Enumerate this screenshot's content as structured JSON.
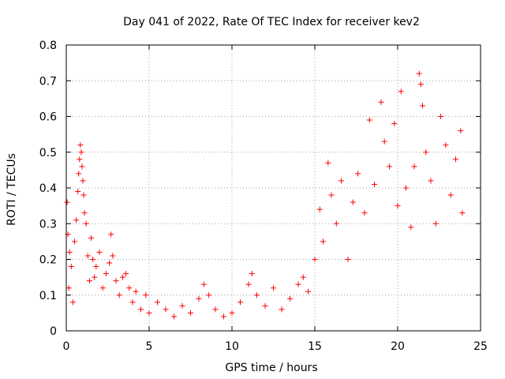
{
  "chart_data": {
    "type": "scatter",
    "title": "Day 041 of 2022, Rate Of TEC Index for receiver kev2",
    "xlabel": "GPS time / hours",
    "ylabel": "ROTI / TECUs",
    "xlim": [
      0,
      25
    ],
    "ylim": [
      0,
      0.8
    ],
    "xticks": [
      0,
      5,
      10,
      15,
      20,
      25
    ],
    "yticks": [
      0,
      0.1,
      0.2,
      0.3,
      0.4,
      0.5,
      0.6,
      0.7,
      0.8
    ],
    "xtick_labels": [
      "0",
      "5",
      "10",
      "15",
      "20",
      "25"
    ],
    "ytick_labels": [
      "0",
      "0.1",
      "0.2",
      "0.3",
      "0.4",
      "0.5",
      "0.6",
      "0.7",
      "0.8"
    ],
    "grid": true,
    "marker": "+",
    "marker_color": "#ff0000",
    "series": [
      {
        "name": "ROTI kev2",
        "points": [
          [
            0.05,
            0.36
          ],
          [
            0.1,
            0.27
          ],
          [
            0.15,
            0.12
          ],
          [
            0.2,
            0.22
          ],
          [
            0.3,
            0.18
          ],
          [
            0.4,
            0.08
          ],
          [
            0.5,
            0.25
          ],
          [
            0.6,
            0.31
          ],
          [
            0.7,
            0.39
          ],
          [
            0.75,
            0.44
          ],
          [
            0.8,
            0.48
          ],
          [
            0.85,
            0.52
          ],
          [
            0.9,
            0.5
          ],
          [
            0.95,
            0.46
          ],
          [
            1.0,
            0.42
          ],
          [
            1.05,
            0.38
          ],
          [
            1.1,
            0.33
          ],
          [
            1.2,
            0.3
          ],
          [
            1.3,
            0.21
          ],
          [
            1.4,
            0.14
          ],
          [
            1.5,
            0.26
          ],
          [
            1.6,
            0.2
          ],
          [
            1.7,
            0.15
          ],
          [
            1.8,
            0.18
          ],
          [
            2.0,
            0.22
          ],
          [
            2.2,
            0.12
          ],
          [
            2.4,
            0.16
          ],
          [
            2.6,
            0.19
          ],
          [
            2.7,
            0.27
          ],
          [
            2.8,
            0.21
          ],
          [
            3.0,
            0.14
          ],
          [
            3.2,
            0.1
          ],
          [
            3.4,
            0.15
          ],
          [
            3.6,
            0.16
          ],
          [
            3.8,
            0.12
          ],
          [
            4.0,
            0.08
          ],
          [
            4.2,
            0.11
          ],
          [
            4.5,
            0.06
          ],
          [
            4.8,
            0.1
          ],
          [
            5.0,
            0.05
          ],
          [
            5.5,
            0.08
          ],
          [
            6.0,
            0.06
          ],
          [
            6.5,
            0.04
          ],
          [
            7.0,
            0.07
          ],
          [
            7.5,
            0.05
          ],
          [
            8.0,
            0.09
          ],
          [
            8.3,
            0.13
          ],
          [
            8.6,
            0.1
          ],
          [
            9.0,
            0.06
          ],
          [
            9.5,
            0.04
          ],
          [
            10.0,
            0.05
          ],
          [
            10.5,
            0.08
          ],
          [
            11.0,
            0.13
          ],
          [
            11.2,
            0.16
          ],
          [
            11.5,
            0.1
          ],
          [
            12.0,
            0.07
          ],
          [
            12.5,
            0.12
          ],
          [
            13.0,
            0.06
          ],
          [
            13.5,
            0.09
          ],
          [
            14.0,
            0.13
          ],
          [
            14.3,
            0.15
          ],
          [
            14.6,
            0.11
          ],
          [
            15.0,
            0.2
          ],
          [
            15.3,
            0.34
          ],
          [
            15.5,
            0.25
          ],
          [
            15.8,
            0.47
          ],
          [
            16.0,
            0.38
          ],
          [
            16.3,
            0.3
          ],
          [
            16.6,
            0.42
          ],
          [
            17.0,
            0.2
          ],
          [
            17.3,
            0.36
          ],
          [
            17.6,
            0.44
          ],
          [
            18.0,
            0.33
          ],
          [
            18.3,
            0.59
          ],
          [
            18.6,
            0.41
          ],
          [
            19.0,
            0.64
          ],
          [
            19.2,
            0.53
          ],
          [
            19.5,
            0.46
          ],
          [
            19.8,
            0.58
          ],
          [
            20.0,
            0.35
          ],
          [
            20.2,
            0.67
          ],
          [
            20.5,
            0.4
          ],
          [
            20.8,
            0.29
          ],
          [
            21.0,
            0.46
          ],
          [
            21.3,
            0.72
          ],
          [
            21.4,
            0.69
          ],
          [
            21.5,
            0.63
          ],
          [
            21.7,
            0.5
          ],
          [
            22.0,
            0.42
          ],
          [
            22.3,
            0.3
          ],
          [
            22.6,
            0.6
          ],
          [
            22.9,
            0.52
          ],
          [
            23.2,
            0.38
          ],
          [
            23.5,
            0.48
          ],
          [
            23.8,
            0.56
          ],
          [
            23.9,
            0.33
          ]
        ]
      }
    ]
  }
}
